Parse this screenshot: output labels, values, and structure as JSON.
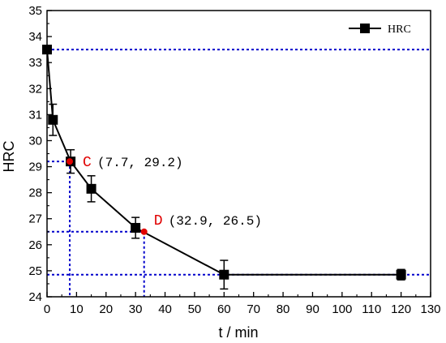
{
  "chart_data": {
    "type": "line",
    "xlabel": "t / min",
    "ylabel": "HRC",
    "xlim": [
      0,
      130
    ],
    "ylim": [
      24,
      35
    ],
    "xticks": [
      0,
      10,
      20,
      30,
      40,
      50,
      60,
      70,
      80,
      90,
      100,
      110,
      120,
      130
    ],
    "yticks": [
      24,
      25,
      26,
      27,
      28,
      29,
      30,
      31,
      32,
      33,
      34,
      35
    ],
    "grid": false,
    "legend_position": "top-right",
    "series": [
      {
        "name": "HRC",
        "marker": "square",
        "color": "#000000",
        "x": [
          0,
          2,
          8,
          15,
          30,
          60,
          120
        ],
        "y": [
          33.5,
          30.8,
          29.2,
          28.15,
          26.65,
          24.85,
          24.85
        ],
        "yerr": [
          0,
          0.6,
          0.45,
          0.5,
          0.4,
          0.55,
          0.2
        ]
      }
    ],
    "reference_lines": {
      "color": "#0000cc",
      "horizontal": [
        33.5,
        29.2,
        26.5,
        24.85
      ],
      "vertical": [
        7.7,
        32.9
      ]
    },
    "annotations": [
      {
        "letter": "C",
        "coords": "(7.7, 29.2)",
        "x": 7.7,
        "y": 29.2,
        "color": "#e00000"
      },
      {
        "letter": "D",
        "coords": "(32.9, 26.5)",
        "x": 32.9,
        "y": 26.5,
        "color": "#e00000"
      }
    ]
  }
}
